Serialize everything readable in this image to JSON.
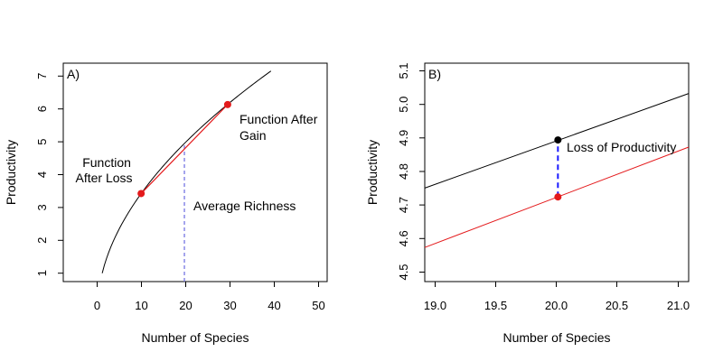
{
  "chart_data": [
    {
      "panel": "A)",
      "type": "line",
      "xlabel": "Number of Species",
      "ylabel": "Productivity",
      "xlim": [
        -8,
        53
      ],
      "ylim": [
        0.75,
        7.3
      ],
      "x_ticks": [
        0,
        10,
        20,
        30,
        40,
        50
      ],
      "y_ticks": [
        1,
        2,
        3,
        4,
        5,
        6,
        7
      ],
      "grid": false,
      "series": [
        {
          "color": "#000000",
          "formula": "y = x^0.53",
          "x_range": [
            1,
            40
          ]
        },
        {
          "color": "#e41a1c",
          "x": [
            10,
            30
          ],
          "y": [
            3.39,
            6.06
          ]
        }
      ],
      "points": [
        {
          "x": 10,
          "y": 3.39,
          "color": "#e41a1c"
        },
        {
          "x": 30,
          "y": 6.06,
          "color": "#e41a1c"
        }
      ],
      "vlines": [
        {
          "x": 20,
          "y": [
            0.75,
            4.9
          ],
          "color": "#6a6ae0",
          "style": "dashed"
        }
      ],
      "annotations": [
        {
          "lines": [
            "Function",
            "After Loss"
          ]
        },
        {
          "lines": [
            "Function After",
            "Gain"
          ]
        },
        {
          "lines": [
            "Average Richness"
          ]
        }
      ]
    },
    {
      "panel": "B)",
      "type": "line",
      "xlabel": "Number of Species",
      "ylabel": "Productivity",
      "xlim": [
        18.9,
        21.08
      ],
      "ylim": [
        4.48,
        5.12
      ],
      "x_ticks": [
        19.0,
        19.5,
        20.0,
        20.5,
        21.0
      ],
      "x_tick_labels": [
        "19.0",
        "19.5",
        "20.0",
        "20.5",
        "21.0"
      ],
      "y_ticks": [
        4.5,
        4.6,
        4.7,
        4.8,
        4.9,
        5.0,
        5.1
      ],
      "y_tick_labels": [
        "4.5",
        "4.6",
        "4.7",
        "4.8",
        "4.9",
        "5.0",
        "5.1"
      ],
      "grid": false,
      "series": [
        {
          "color": "#000000",
          "x": [
            18.9,
            21.08
          ],
          "y": [
            4.754,
            5.031
          ]
        },
        {
          "color": "#e41a1c",
          "x": [
            18.9,
            21.08
          ],
          "y": [
            4.58,
            4.874
          ]
        }
      ],
      "points": [
        {
          "x": 20,
          "y": 4.895,
          "color": "#000000"
        },
        {
          "x": 20,
          "y": 4.728,
          "color": "#e41a1c"
        }
      ],
      "vlines": [
        {
          "x": 20,
          "y": [
            4.728,
            4.895
          ],
          "color": "#1a1aff",
          "style": "dashed"
        }
      ],
      "annotations": [
        {
          "lines": [
            "Loss of Productivity"
          ]
        }
      ]
    }
  ]
}
